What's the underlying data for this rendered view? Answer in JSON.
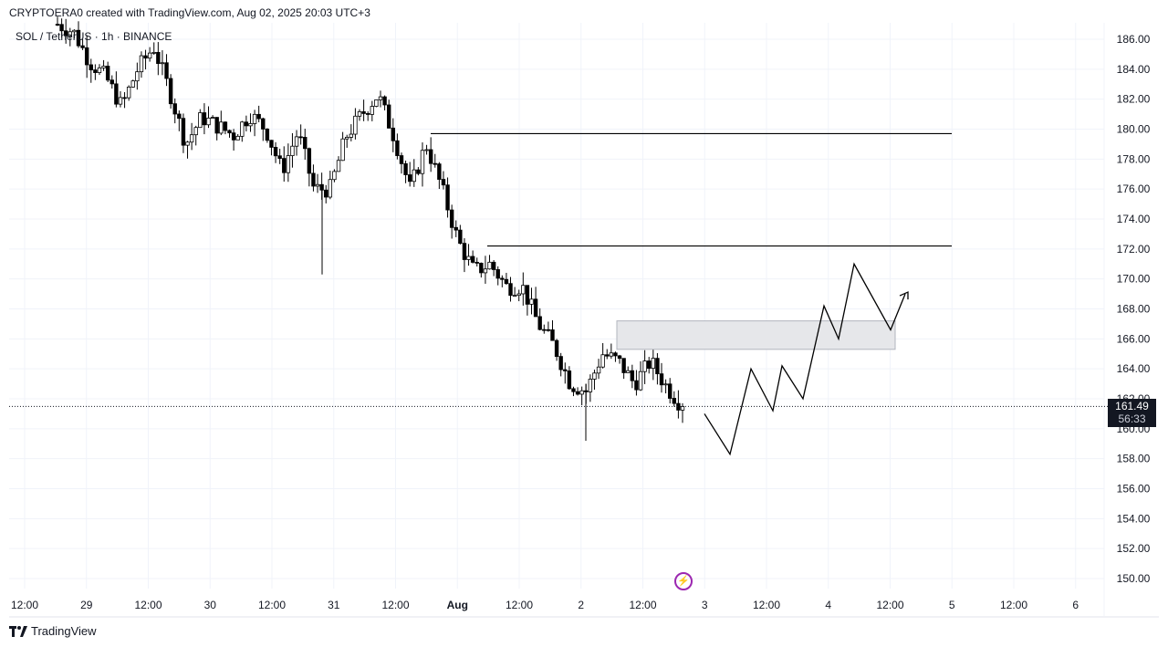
{
  "header": {
    "attribution": "CRYPTOERA0 created with TradingView.com, Aug 02, 2025 20:03 UTC+3",
    "symbol": "SOL / TetherUS · 1h · BINANCE"
  },
  "price_tag": {
    "price": "161.49",
    "countdown": "56:33"
  },
  "footer": {
    "brand": "TradingView"
  },
  "icons": {
    "event": "lightning-icon",
    "brand": "tradingview-logo-icon"
  },
  "colors": {
    "candle": "#000000",
    "grid": "#f0f3fa",
    "zone_fill": "#e6e7ea",
    "event": "#9c27b0"
  },
  "chart_data": {
    "type": "candlestick",
    "title": "SOL / TetherUS · 1h · BINANCE",
    "ylim": [
      149,
      187
    ],
    "y_ticks": [
      "150.00",
      "152.00",
      "154.00",
      "156.00",
      "158.00",
      "160.00",
      "162.00",
      "164.00",
      "166.00",
      "168.00",
      "170.00",
      "172.00",
      "174.00",
      "176.00",
      "178.00",
      "180.00",
      "182.00",
      "184.00",
      "186.00"
    ],
    "x_ticks": [
      "12:00",
      "29",
      "12:00",
      "30",
      "12:00",
      "31",
      "12:00",
      "Aug",
      "12:00",
      "2",
      "12:00",
      "3",
      "12:00",
      "4",
      "12:00",
      "5",
      "12:00",
      "6"
    ],
    "x_tick_bold": [
      false,
      false,
      false,
      false,
      false,
      false,
      false,
      true,
      false,
      false,
      false,
      false,
      false,
      false,
      false,
      false,
      false,
      false
    ],
    "last_price": 161.49,
    "price_path": [
      187,
      186.5,
      184.5,
      183.5,
      181.5,
      184.0,
      185.5,
      182.5,
      179.0,
      180.8,
      180.2,
      179.6,
      181.0,
      180.0,
      177.2,
      179.8,
      176.0,
      176.0,
      179.5,
      181.0,
      182.3,
      179.5,
      176.0,
      179.0,
      176.0,
      172.5,
      170.5,
      171.0,
      169.5,
      169.5,
      167.0,
      165.5,
      163.0,
      162.5,
      165.0,
      164.5,
      163.0,
      164.5,
      162.8,
      161.5
    ],
    "horizontal_levels": [
      179.7,
      172.2
    ],
    "zone": {
      "top": 167.2,
      "bottom": 165.3
    },
    "projection_path": [
      161.0,
      158.3,
      164.0,
      161.2,
      164.2,
      162.0,
      168.2,
      166.0,
      171.0,
      166.6,
      169.0
    ]
  }
}
